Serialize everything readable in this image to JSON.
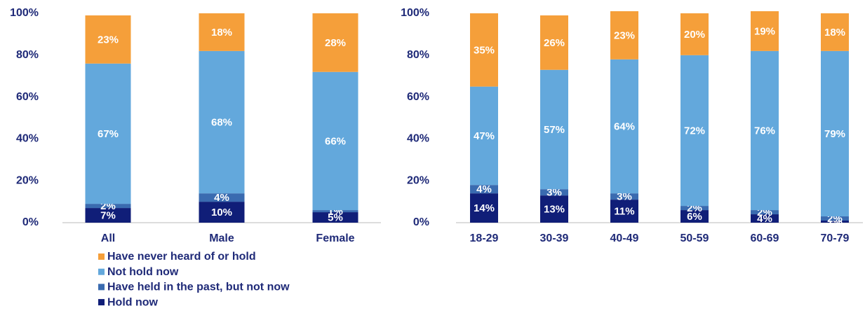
{
  "chart_data": [
    {
      "type": "bar",
      "stacked": true,
      "categories": [
        "All",
        "Male",
        "Female"
      ],
      "ylim": [
        0,
        100
      ],
      "yticks": [
        {
          "value": 0,
          "label": "0%"
        },
        {
          "value": 20,
          "label": "20%"
        },
        {
          "value": 40,
          "label": "40%"
        },
        {
          "value": 60,
          "label": "60%"
        },
        {
          "value": 80,
          "label": "80%"
        },
        {
          "value": 100,
          "label": "100%"
        }
      ],
      "series": [
        {
          "name": "Hold now",
          "color": "#101e78",
          "values": [
            7,
            10,
            5
          ],
          "value_labels": [
            "7%",
            "10%",
            "5%"
          ]
        },
        {
          "name": "Have held in the past, but not now",
          "color": "#3a6bb0",
          "values": [
            2,
            4,
            1
          ],
          "value_labels": [
            "2%",
            "4%",
            "1%"
          ]
        },
        {
          "name": "Not hold now",
          "color": "#63a8dc",
          "values": [
            67,
            68,
            66
          ],
          "value_labels": [
            "67%",
            "68%",
            "66%"
          ]
        },
        {
          "name": "Have never heard of or hold",
          "color": "#f59f3a",
          "values": [
            23,
            18,
            28
          ],
          "value_labels": [
            "23%",
            "18%",
            "28%"
          ]
        }
      ]
    },
    {
      "type": "bar",
      "stacked": true,
      "categories": [
        "18-29",
        "30-39",
        "40-49",
        "50-59",
        "60-69",
        "70-79"
      ],
      "ylim": [
        0,
        100
      ],
      "yticks": [
        {
          "value": 0,
          "label": "0%"
        },
        {
          "value": 20,
          "label": "20%"
        },
        {
          "value": 40,
          "label": "40%"
        },
        {
          "value": 60,
          "label": "60%"
        },
        {
          "value": 80,
          "label": "80%"
        },
        {
          "value": 100,
          "label": "100%"
        }
      ],
      "series": [
        {
          "color": "#101e78",
          "values": [
            14,
            13,
            11,
            6,
            4,
            1
          ],
          "value_labels": [
            "14%",
            "13%",
            "11%",
            "6%",
            "4%",
            "1%"
          ]
        },
        {
          "color": "#3a6bb0",
          "values": [
            4,
            3,
            3,
            2,
            2,
            2
          ],
          "value_labels": [
            "4%",
            "3%",
            "3%",
            "2%",
            "2%",
            "2%"
          ]
        },
        {
          "color": "#63a8dc",
          "values": [
            47,
            57,
            64,
            72,
            76,
            79
          ],
          "value_labels": [
            "47%",
            "57%",
            "64%",
            "72%",
            "76%",
            "79%"
          ]
        },
        {
          "color": "#f59f3a",
          "values": [
            35,
            26,
            23,
            20,
            19,
            18
          ],
          "value_labels": [
            "35%",
            "26%",
            "23%",
            "20%",
            "19%",
            "18%"
          ]
        }
      ]
    }
  ]
}
